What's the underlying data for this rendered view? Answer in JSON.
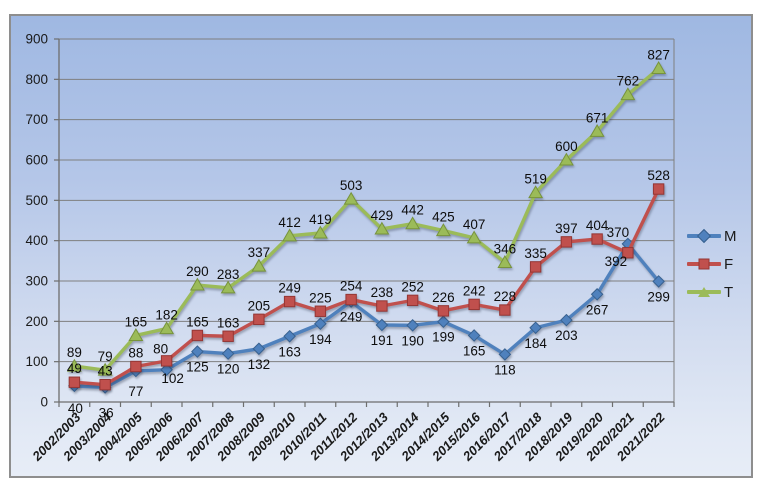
{
  "chart_data": {
    "type": "line",
    "title": "",
    "categories": [
      "2002/2003",
      "2003/2004",
      "2004/2005",
      "2005/2006",
      "2006/2007",
      "2007/2008",
      "2008/2009",
      "2009/2010",
      "2010/2011",
      "2011/2012",
      "2012/2013",
      "2013/2014",
      "2014/2015",
      "2015/2016",
      "2016/2017",
      "2017/2018",
      "2018/2019",
      "2019/2020",
      "2020/2021",
      "2021/2022"
    ],
    "series": [
      {
        "name": "M",
        "marker": "diamond",
        "color": "#4f81bd",
        "edge": "#38618f",
        "values": [
          40,
          36,
          77,
          80,
          125,
          120,
          132,
          163,
          194,
          249,
          191,
          190,
          199,
          165,
          118,
          184,
          203,
          267,
          392,
          299
        ]
      },
      {
        "name": "F",
        "marker": "square",
        "color": "#c0504d",
        "edge": "#943634",
        "values": [
          49,
          43,
          88,
          102,
          165,
          163,
          205,
          249,
          225,
          254,
          238,
          252,
          226,
          242,
          228,
          335,
          397,
          404,
          370,
          528
        ]
      },
      {
        "name": "T",
        "marker": "triangle",
        "color": "#9bbb59",
        "edge": "#77933c",
        "values": [
          89,
          79,
          165,
          182,
          290,
          283,
          337,
          412,
          419,
          503,
          429,
          442,
          425,
          407,
          346,
          519,
          600,
          671,
          762,
          827
        ]
      }
    ],
    "y_axis": {
      "min": 0,
      "max": 900,
      "step": 100,
      "tick_labels": [
        "0",
        "100",
        "200",
        "300",
        "400",
        "500",
        "600",
        "700",
        "800",
        "900"
      ]
    },
    "x_axis": {
      "label_rotation_deg": -45,
      "label_style": "bold-italic"
    },
    "legend": {
      "position": "right",
      "entries": [
        "M",
        "F",
        "T"
      ]
    },
    "grid": true,
    "colors": {
      "gridline": "#7f7f7f",
      "axis": "#6e6e6e",
      "data_label": "#0d0d0d",
      "tick_label": "#1a1a1a",
      "plot_bg_top": "#9fb8e2",
      "plot_bg_bottom": "#e7edf7",
      "frame_border": "#8e8e8e"
    },
    "data_label_placement": {
      "default": {
        "M": "below",
        "F": "above",
        "T": "above"
      },
      "exceptions": {
        "M": {
          "0": [
            1,
            27
          ],
          "1": [
            1,
            30
          ],
          "2": [
            0,
            25
          ],
          "3": [
            -6,
            -16
          ],
          "18": [
            -12,
            22
          ]
        },
        "F": {
          "3": [
            6,
            22
          ],
          "18": [
            -10,
            -16
          ]
        }
      }
    }
  }
}
